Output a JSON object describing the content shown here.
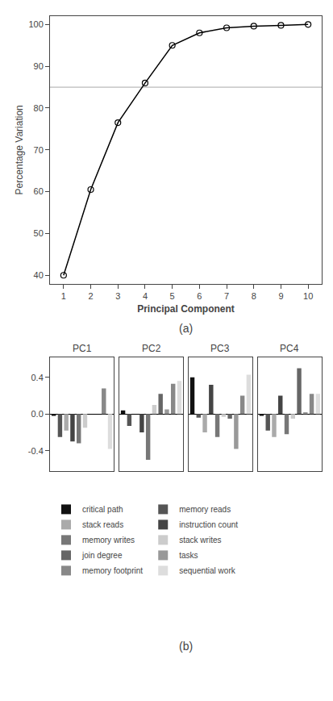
{
  "chart_data": [
    {
      "type": "line",
      "x": [
        1,
        2,
        3,
        4,
        5,
        6,
        7,
        8,
        9,
        10
      ],
      "values": [
        40.0,
        60.5,
        76.5,
        86.0,
        95.0,
        98.0,
        99.2,
        99.6,
        99.8,
        100.0
      ],
      "color": "#000000",
      "marker": "circle",
      "hline": {
        "y": 85,
        "color": "#aaaaaa"
      },
      "x_label": "Principal Component",
      "y_label": "Percentage Variation",
      "xlim": [
        0.5,
        10.5
      ],
      "ylim": [
        38,
        102
      ],
      "xticks": [
        1,
        2,
        3,
        4,
        5,
        6,
        7,
        8,
        9,
        10
      ],
      "yticks": [
        40,
        50,
        60,
        70,
        80,
        90,
        100
      ],
      "grid": false,
      "caption": "(a)"
    },
    {
      "type": "bar",
      "title": "PC1",
      "categories": [
        "critical path",
        "memory reads",
        "stack reads",
        "instruction count",
        "memory writes",
        "stack writes",
        "join degree",
        "tasks",
        "memory footprint",
        "sequential work"
      ],
      "colors": [
        "#111111",
        "#555555",
        "#aaaaaa",
        "#444444",
        "#777777",
        "#cccccc",
        "#666666",
        "#999999",
        "#888888",
        "#dddddd"
      ],
      "values": [
        -0.02,
        -0.25,
        -0.18,
        -0.3,
        -0.32,
        -0.15,
        0.0,
        0.0,
        0.28,
        -0.38
      ],
      "ylim": [
        -0.62,
        0.62
      ],
      "yticks": [
        -0.4,
        {
          "value": 0.0,
          "label": "0.0"
        },
        0.4
      ],
      "tick_labels": "y",
      "grid": false,
      "legend": "bottom"
    },
    {
      "type": "bar",
      "title": "PC2",
      "categories": [
        "critical path",
        "memory reads",
        "stack reads",
        "instruction count",
        "memory writes",
        "stack writes",
        "join degree",
        "tasks",
        "memory footprint",
        "sequential work"
      ],
      "colors": [
        "#111111",
        "#555555",
        "#aaaaaa",
        "#444444",
        "#777777",
        "#cccccc",
        "#666666",
        "#999999",
        "#888888",
        "#dddddd"
      ],
      "values": [
        0.04,
        -0.13,
        0.0,
        -0.2,
        -0.5,
        0.1,
        0.22,
        0.05,
        0.33,
        0.36
      ],
      "ylim": [
        -0.62,
        0.62
      ],
      "yticks": [
        -0.4,
        {
          "value": 0.0,
          "label": "0.0"
        },
        0.4
      ],
      "tick_labels": false,
      "grid": false,
      "legend": "bottom"
    },
    {
      "type": "bar",
      "title": "PC3",
      "categories": [
        "critical path",
        "memory reads",
        "stack reads",
        "instruction count",
        "memory writes",
        "stack writes",
        "join degree",
        "tasks",
        "memory footprint",
        "sequential work"
      ],
      "colors": [
        "#111111",
        "#555555",
        "#aaaaaa",
        "#444444",
        "#777777",
        "#cccccc",
        "#666666",
        "#999999",
        "#888888",
        "#dddddd"
      ],
      "values": [
        0.4,
        -0.04,
        -0.2,
        0.32,
        -0.25,
        -0.03,
        -0.05,
        -0.38,
        0.2,
        0.43
      ],
      "ylim": [
        -0.62,
        0.62
      ],
      "yticks": [
        -0.4,
        {
          "value": 0.0,
          "label": "0.0"
        },
        0.4
      ],
      "tick_labels": false,
      "grid": false,
      "legend": "bottom"
    },
    {
      "type": "bar",
      "title": "PC4",
      "categories": [
        "critical path",
        "memory reads",
        "stack reads",
        "instruction count",
        "memory writes",
        "stack writes",
        "join degree",
        "tasks",
        "memory footprint",
        "sequential work"
      ],
      "colors": [
        "#111111",
        "#555555",
        "#aaaaaa",
        "#444444",
        "#777777",
        "#cccccc",
        "#666666",
        "#999999",
        "#888888",
        "#dddddd"
      ],
      "values": [
        -0.02,
        -0.18,
        -0.25,
        0.2,
        -0.22,
        -0.05,
        0.5,
        0.02,
        0.22,
        0.22
      ],
      "ylim": [
        -0.62,
        0.62
      ],
      "yticks": [
        -0.4,
        {
          "value": 0.0,
          "label": "0.0"
        },
        0.4
      ],
      "tick_labels": false,
      "grid": false,
      "legend": "bottom",
      "caption": "(b)"
    }
  ]
}
